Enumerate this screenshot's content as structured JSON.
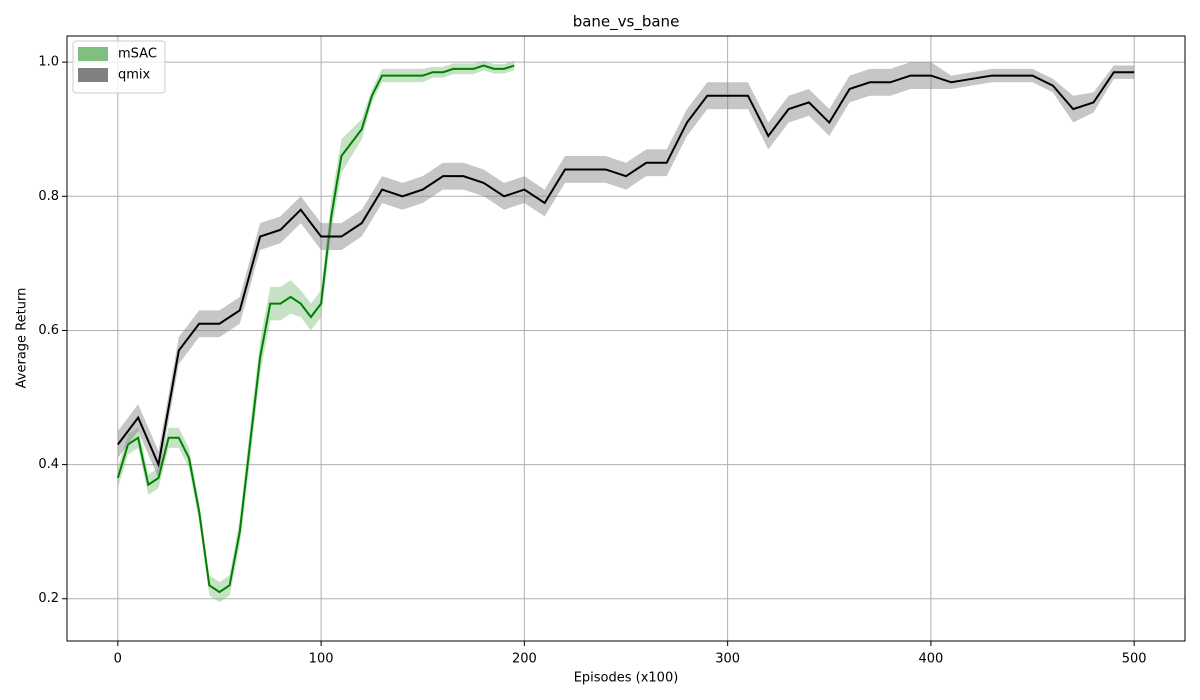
{
  "chart_data": {
    "type": "line",
    "title": "bane_vs_bane",
    "x_label": "Episodes (x100)",
    "y_label": "Average Return",
    "xlim": [
      -25,
      525
    ],
    "ylim": [
      0.137,
      1.039
    ],
    "xticks": [
      0,
      100,
      200,
      300,
      400,
      500
    ],
    "yticks": [
      0.2,
      0.4,
      0.6,
      0.8,
      {
        "value": 1,
        "label": "1.0"
      }
    ],
    "grid": true,
    "legend": "upper left",
    "series": [
      {
        "name": "mSAC",
        "color": "#008000",
        "band_color": "#7fbf7f",
        "x": [
          0,
          5,
          10,
          15,
          20,
          25,
          30,
          35,
          40,
          45,
          50,
          55,
          60,
          65,
          70,
          75,
          80,
          85,
          90,
          95,
          100,
          105,
          110,
          115,
          120,
          125,
          130,
          135,
          140,
          145,
          150,
          155,
          160,
          165,
          170,
          175,
          180,
          185,
          190,
          195
        ],
        "values": [
          0.38,
          0.43,
          0.44,
          0.37,
          0.38,
          0.44,
          0.44,
          0.41,
          0.33,
          0.22,
          0.21,
          0.22,
          0.3,
          0.43,
          0.56,
          0.64,
          0.64,
          0.65,
          0.64,
          0.62,
          0.64,
          0.77,
          0.86,
          0.88,
          0.9,
          0.95,
          0.98,
          0.98,
          0.98,
          0.98,
          0.98,
          0.985,
          0.985,
          0.99,
          0.99,
          0.99,
          0.995,
          0.99,
          0.99,
          0.995
        ],
        "lower": [
          0.365,
          0.415,
          0.425,
          0.355,
          0.365,
          0.425,
          0.425,
          0.395,
          0.315,
          0.205,
          0.195,
          0.205,
          0.28,
          0.405,
          0.535,
          0.615,
          0.615,
          0.625,
          0.62,
          0.6,
          0.62,
          0.745,
          0.835,
          0.86,
          0.885,
          0.94,
          0.97,
          0.97,
          0.97,
          0.97,
          0.97,
          0.977,
          0.977,
          0.982,
          0.982,
          0.982,
          0.988,
          0.983,
          0.983,
          0.988
        ],
        "upper": [
          0.395,
          0.445,
          0.455,
          0.385,
          0.395,
          0.455,
          0.455,
          0.425,
          0.345,
          0.235,
          0.225,
          0.235,
          0.32,
          0.455,
          0.585,
          0.665,
          0.665,
          0.675,
          0.66,
          0.64,
          0.66,
          0.795,
          0.885,
          0.9,
          0.915,
          0.96,
          0.99,
          0.99,
          0.99,
          0.99,
          0.99,
          0.993,
          0.993,
          0.998,
          0.998,
          0.998,
          1.002,
          0.997,
          0.997,
          1.002
        ]
      },
      {
        "name": "qmix",
        "color": "#000000",
        "band_color": "#808080",
        "x": [
          0,
          10,
          20,
          30,
          40,
          50,
          60,
          70,
          80,
          90,
          100,
          110,
          120,
          130,
          140,
          150,
          160,
          170,
          180,
          190,
          200,
          210,
          220,
          230,
          240,
          250,
          260,
          270,
          280,
          290,
          300,
          310,
          320,
          330,
          340,
          350,
          360,
          370,
          380,
          390,
          400,
          410,
          420,
          430,
          440,
          450,
          460,
          470,
          480,
          490,
          500
        ],
        "values": [
          0.43,
          0.47,
          0.4,
          0.57,
          0.61,
          0.61,
          0.63,
          0.74,
          0.75,
          0.78,
          0.74,
          0.74,
          0.76,
          0.81,
          0.8,
          0.81,
          0.83,
          0.83,
          0.82,
          0.8,
          0.81,
          0.79,
          0.84,
          0.84,
          0.84,
          0.83,
          0.85,
          0.85,
          0.91,
          0.95,
          0.95,
          0.95,
          0.89,
          0.93,
          0.94,
          0.91,
          0.96,
          0.97,
          0.97,
          0.98,
          0.98,
          0.97,
          0.975,
          0.98,
          0.98,
          0.98,
          0.965,
          0.93,
          0.94,
          0.985,
          0.985
        ],
        "lower": [
          0.41,
          0.45,
          0.38,
          0.55,
          0.59,
          0.59,
          0.61,
          0.72,
          0.73,
          0.76,
          0.72,
          0.72,
          0.74,
          0.79,
          0.78,
          0.79,
          0.81,
          0.81,
          0.8,
          0.78,
          0.79,
          0.77,
          0.82,
          0.82,
          0.82,
          0.81,
          0.83,
          0.83,
          0.89,
          0.93,
          0.93,
          0.93,
          0.87,
          0.91,
          0.92,
          0.89,
          0.94,
          0.95,
          0.95,
          0.96,
          0.96,
          0.96,
          0.965,
          0.97,
          0.97,
          0.97,
          0.955,
          0.91,
          0.925,
          0.975,
          0.975
        ],
        "upper": [
          0.45,
          0.49,
          0.42,
          0.59,
          0.63,
          0.63,
          0.65,
          0.76,
          0.77,
          0.8,
          0.76,
          0.76,
          0.78,
          0.83,
          0.82,
          0.83,
          0.85,
          0.85,
          0.84,
          0.82,
          0.83,
          0.81,
          0.86,
          0.86,
          0.86,
          0.85,
          0.87,
          0.87,
          0.93,
          0.97,
          0.97,
          0.97,
          0.91,
          0.95,
          0.96,
          0.93,
          0.98,
          0.99,
          0.99,
          1.0,
          1.0,
          0.98,
          0.985,
          0.99,
          0.99,
          0.99,
          0.975,
          0.95,
          0.955,
          0.995,
          0.995
        ]
      }
    ]
  }
}
